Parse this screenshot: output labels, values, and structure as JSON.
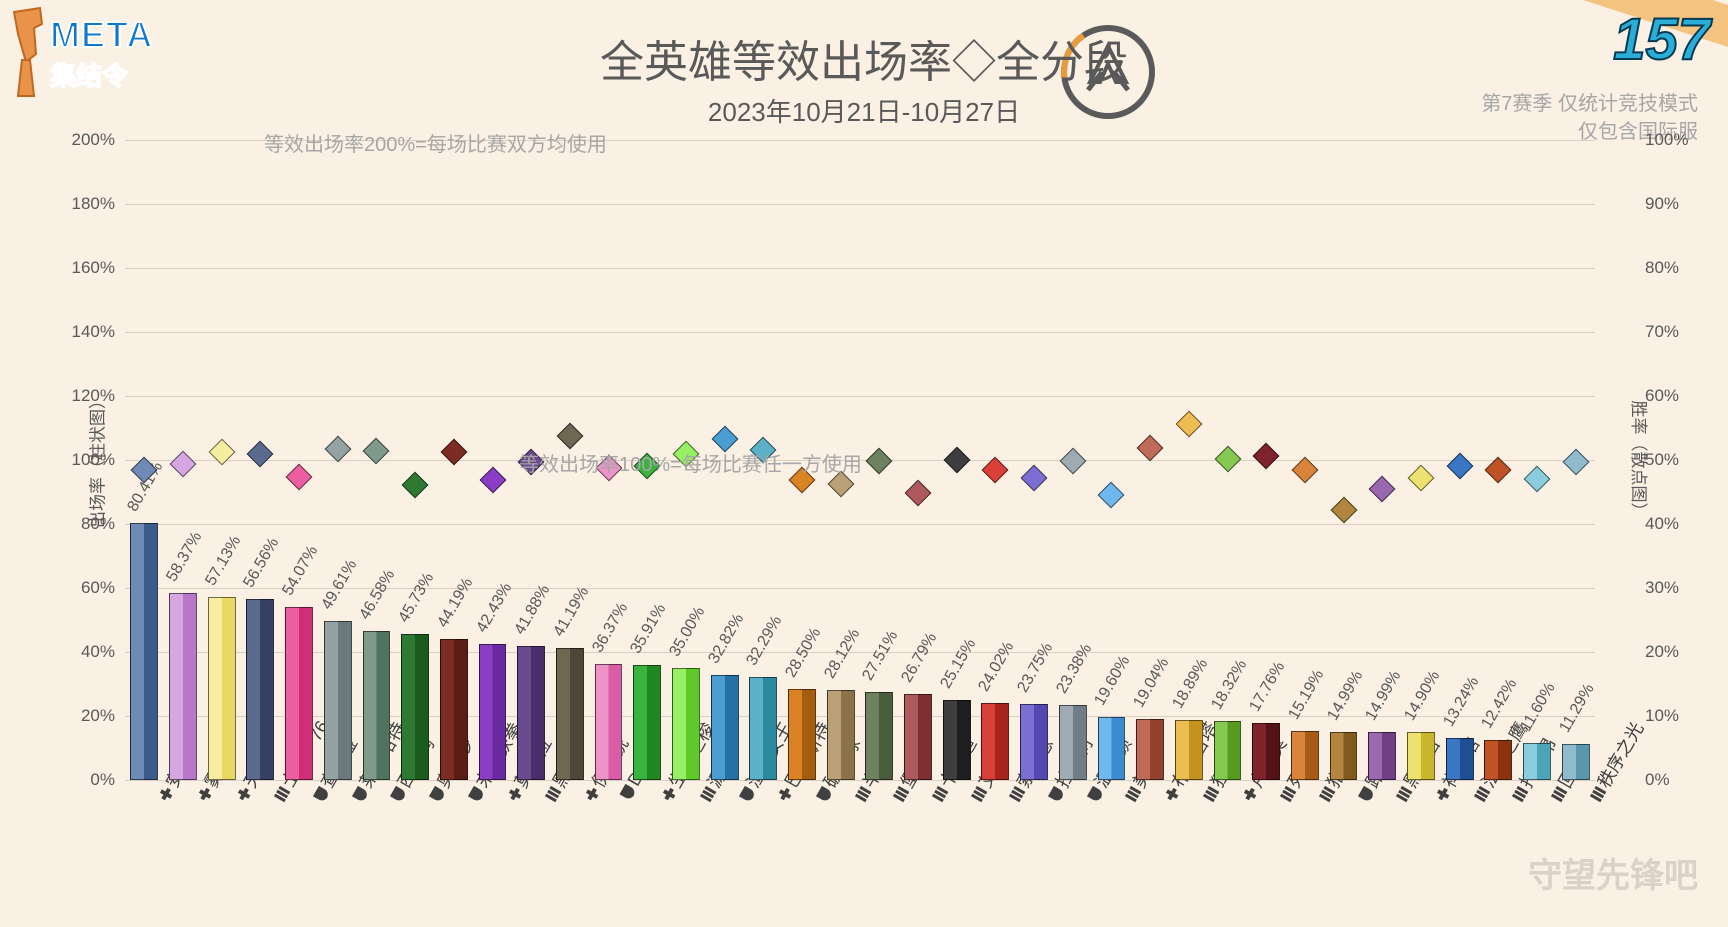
{
  "title": "全英雄等效出场率◇全分段",
  "subtitle": "2023年10月21日-10月27日",
  "corner_number": "157",
  "logo_line1": "META",
  "logo_line2": "集结令",
  "right_info_line1": "第7赛季 仅统计竞技模式",
  "right_info_line2": "仅包含国际服",
  "note_200": "等效出场率200%=每场比赛双方均使用",
  "note_100": "等效出场率100%=每场比赛任一方使用",
  "yaxis_left_title": "出场率（柱状图）",
  "yaxis_right_title": "胜率（散点图）",
  "watermark": "守望先锋吧",
  "colors": {
    "background": "#faf0e4",
    "grid": "#d9cfc4",
    "text": "#595959",
    "note": "#a6a6a6"
  },
  "left_axis": {
    "min": 0,
    "max": 200,
    "step": 20
  },
  "right_axis": {
    "min": 0,
    "max": 100,
    "step": 10
  },
  "heroes": [
    {
      "name": "安娜",
      "role": "support",
      "pick": 80.41,
      "win": 48.5,
      "color": "#6f8ab7",
      "dark": "#3c5a8a"
    },
    {
      "name": "雾子",
      "role": "support",
      "pick": 58.37,
      "win": 49.3,
      "color": "#d6a6e0",
      "dark": "#b877c9"
    },
    {
      "name": "天使",
      "role": "support",
      "pick": 57.13,
      "win": 51.2,
      "color": "#f6eda1",
      "dark": "#e8d964"
    },
    {
      "name": "士兵：76",
      "role": "dps",
      "pick": 56.56,
      "win": 51.0,
      "color": "#5b6a8f",
      "dark": "#364063"
    },
    {
      "name": "查莉娅",
      "role": "tank",
      "pick": 54.07,
      "win": 47.4,
      "color": "#ed5fa0",
      "dark": "#d02e78"
    },
    {
      "name": "莱因哈特",
      "role": "tank",
      "pick": 49.61,
      "win": 51.7,
      "color": "#94a2a3",
      "dark": "#6a7a7b"
    },
    {
      "name": "西格玛",
      "role": "tank",
      "pick": 46.58,
      "win": 51.4,
      "color": "#7f9a8a",
      "dark": "#4f735f"
    },
    {
      "name": "奥丽莎",
      "role": "tank",
      "pick": 45.73,
      "win": 46.1,
      "color": "#2f7a32",
      "dark": "#1b5b1e"
    },
    {
      "name": "末日铁拳",
      "role": "tank",
      "pick": 44.19,
      "win": 51.3,
      "color": "#7d2c23",
      "dark": "#5a1d16"
    },
    {
      "name": "莫伊拉",
      "role": "support",
      "pick": 42.43,
      "win": 46.9,
      "color": "#8a3ec4",
      "dark": "#6a2aa0"
    },
    {
      "name": "黑影",
      "role": "dps",
      "pick": 41.88,
      "win": 49.7,
      "color": "#6a4a8f",
      "dark": "#4a2e6c"
    },
    {
      "name": "伊拉锐",
      "role": "support",
      "pick": 41.19,
      "win": 53.8,
      "color": "#6f6752",
      "dark": "#4e4636"
    },
    {
      "name": "D.Va",
      "role": "tank",
      "pick": 36.37,
      "win": 48.8,
      "color": "#ed93c7",
      "dark": "#d95ca4"
    },
    {
      "name": "生命之梭",
      "role": "support",
      "pick": 35.91,
      "win": 49.1,
      "color": "#3ab23e",
      "dark": "#1f8822"
    },
    {
      "name": "源氏",
      "role": "dps",
      "pick": 35.0,
      "win": 51.0,
      "color": "#97ef63",
      "dark": "#5fc92c"
    },
    {
      "name": "渣客女王",
      "role": "tank",
      "pick": 32.82,
      "win": 53.3,
      "color": "#4a9ed1",
      "dark": "#2671a3"
    },
    {
      "name": "巴蒂斯特",
      "role": "support",
      "pick": 32.29,
      "win": 51.6,
      "color": "#5bb1c5",
      "dark": "#2b8aa0"
    },
    {
      "name": "破坏球",
      "role": "tank",
      "pick": 28.5,
      "win": 46.8,
      "color": "#d98324",
      "dark": "#a65d10"
    },
    {
      "name": "半藏",
      "role": "dps",
      "pick": 28.12,
      "win": 46.3,
      "color": "#b9a077",
      "dark": "#8c724a"
    },
    {
      "name": "堡垒",
      "role": "dps",
      "pick": 27.51,
      "win": 49.8,
      "color": "#6e8260",
      "dark": "#4a5d3d"
    },
    {
      "name": "卡西迪",
      "role": "dps",
      "pick": 26.79,
      "win": 44.9,
      "color": "#ae595e",
      "dark": "#7f2f34"
    },
    {
      "name": "艾什",
      "role": "dps",
      "pick": 25.15,
      "win": 50.0,
      "color": "#3e3e3e",
      "dark": "#1e1e1e"
    },
    {
      "name": "索杰恩",
      "role": "dps",
      "pick": 24.02,
      "win": 48.5,
      "color": "#d9403a",
      "dark": "#a6231e"
    },
    {
      "name": "拉玛刹",
      "role": "tank",
      "pick": 23.75,
      "win": 47.2,
      "color": "#7c6fd1",
      "dark": "#5647b0"
    },
    {
      "name": "温斯顿",
      "role": "tank",
      "pick": 23.38,
      "win": 49.9,
      "color": "#a0aab2",
      "dark": "#717d87"
    },
    {
      "name": "美",
      "role": "dps",
      "pick": 19.6,
      "win": 44.6,
      "color": "#6fb7ed",
      "dark": "#3a8bcf"
    },
    {
      "name": "布丽吉塔",
      "role": "support",
      "pick": 19.04,
      "win": 51.9,
      "color": "#be6b57",
      "dark": "#91432f"
    },
    {
      "name": "狂鼠",
      "role": "dps",
      "pick": 18.89,
      "win": 55.6,
      "color": "#ecbd53",
      "dark": "#c6921e"
    },
    {
      "name": "卢西奥",
      "role": "support",
      "pick": 18.32,
      "win": 50.2,
      "color": "#85c952",
      "dark": "#549b20"
    },
    {
      "name": "死神",
      "role": "dps",
      "pick": 17.76,
      "win": 50.7,
      "color": "#7d232b",
      "dark": "#551217"
    },
    {
      "name": "猎空",
      "role": "dps",
      "pick": 15.19,
      "win": 48.5,
      "color": "#d9843d",
      "dark": "#a85b17"
    },
    {
      "name": "路霸",
      "role": "tank",
      "pick": 14.99,
      "win": 42.2,
      "color": "#b28540",
      "dark": "#815b1e"
    },
    {
      "name": "黑百合",
      "role": "dps",
      "pick": 14.99,
      "win": 45.4,
      "color": "#9a68ae",
      "dark": "#6f3e85"
    },
    {
      "name": "禅雅塔",
      "role": "support",
      "pick": 14.9,
      "win": 47.2,
      "color": "#ede171",
      "dark": "#c9b62c"
    },
    {
      "name": "法老之鹰",
      "role": "dps",
      "pick": 13.24,
      "win": 49.0,
      "color": "#3b76c2",
      "dark": "#1e4f94"
    },
    {
      "name": "托比昂",
      "role": "dps",
      "pick": 12.42,
      "win": 48.4,
      "color": "#c05325",
      "dark": "#8a330c"
    },
    {
      "name": "回声",
      "role": "dps",
      "pick": 11.6,
      "win": 47.0,
      "color": "#89ccdb",
      "dark": "#4ca4b8"
    },
    {
      "name": "秩序之光",
      "role": "dps",
      "pick": 11.29,
      "win": 49.7,
      "color": "#8ebccc",
      "dark": "#5a97ab"
    }
  ]
}
